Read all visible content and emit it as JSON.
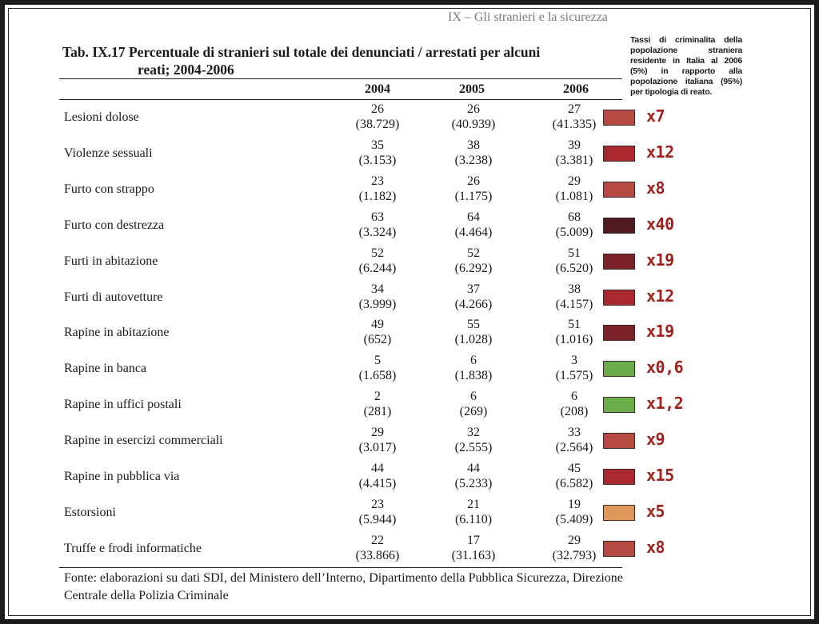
{
  "page_header": "IX – Gli stranieri e la sicurezza",
  "table": {
    "title_line1": "Tab. IX.17 Percentuale di stranieri sul totale dei denunciati / arrestati per alcuni",
    "title_line2": "reati; 2004-2006",
    "columns": [
      "2004",
      "2005",
      "2006"
    ],
    "rows": [
      {
        "label": "Lesioni dolose",
        "v2004": "26",
        "n2004": "(38.729)",
        "v2005": "26",
        "n2005": "(40.939)",
        "v2006": "27",
        "n2006": "(41.335)",
        "factor": "x7",
        "color": "#b54a42"
      },
      {
        "label": "Violenze sessuali",
        "v2004": "35",
        "n2004": "(3.153)",
        "v2005": "38",
        "n2005": "(3.238)",
        "v2006": "39",
        "n2006": "(3.381)",
        "factor": "x12",
        "color": "#a82a2c"
      },
      {
        "label": "Furto con strappo",
        "v2004": "23",
        "n2004": "(1.182)",
        "v2005": "26",
        "n2005": "(1.175)",
        "v2006": "29",
        "n2006": "(1.081)",
        "factor": "x8",
        "color": "#b54a42"
      },
      {
        "label": "Furto con destrezza",
        "v2004": "63",
        "n2004": "(3.324)",
        "v2005": "64",
        "n2005": "(4.464)",
        "v2006": "68",
        "n2006": "(5.009)",
        "factor": "x40",
        "color": "#4e1a20"
      },
      {
        "label": "Furti in abitazione",
        "v2004": "52",
        "n2004": "(6.244)",
        "v2005": "52",
        "n2005": "(6.292)",
        "v2006": "51",
        "n2006": "(6.520)",
        "factor": "x19",
        "color": "#7a2128"
      },
      {
        "label": "Furti di autovetture",
        "v2004": "34",
        "n2004": "(3.999)",
        "v2005": "37",
        "n2005": "(4.266)",
        "v2006": "38",
        "n2006": "(4.157)",
        "factor": "x12",
        "color": "#a82a2c"
      },
      {
        "label": "Rapine in abitazione",
        "v2004": "49",
        "n2004": "(652)",
        "v2005": "55",
        "n2005": "(1.028)",
        "v2006": "51",
        "n2006": "(1.016)",
        "factor": "x19",
        "color": "#7a2128"
      },
      {
        "label": "Rapine in banca",
        "v2004": "5",
        "n2004": "(1.658)",
        "v2005": "6",
        "n2005": "(1.838)",
        "v2006": "3",
        "n2006": "(1.575)",
        "factor": "x0,6",
        "color": "#6aab4a"
      },
      {
        "label": "Rapine in uffici postali",
        "v2004": "2",
        "n2004": "(281)",
        "v2005": "6",
        "n2005": "(269)",
        "v2006": "6",
        "n2006": "(208)",
        "factor": "x1,2",
        "color": "#6aab4a"
      },
      {
        "label": "Rapine in esercizi commerciali",
        "v2004": "29",
        "n2004": "(3.017)",
        "v2005": "32",
        "n2005": "(2.555)",
        "v2006": "33",
        "n2006": "(2.564)",
        "factor": "x9",
        "color": "#b54a42"
      },
      {
        "label": "Rapine in pubblica via",
        "v2004": "44",
        "n2004": "(4.415)",
        "v2005": "44",
        "n2005": "(5.233)",
        "v2006": "45",
        "n2006": "(6.582)",
        "factor": "x15",
        "color": "#a82a2c"
      },
      {
        "label": "Estorsioni",
        "v2004": "23",
        "n2004": "(5.944)",
        "v2005": "21",
        "n2005": "(6.110)",
        "v2006": "19",
        "n2006": "(5.409)",
        "factor": "x5",
        "color": "#e0985a"
      },
      {
        "label": "Truffe e frodi informatiche",
        "v2004": "22",
        "n2004": "(33.866)",
        "v2005": "17",
        "n2005": "(31.163)",
        "v2006": "29",
        "n2006": "(32.793)",
        "factor": "x8",
        "color": "#b54a42"
      }
    ],
    "source": "Fonte: elaborazioni su dati SDI, del Ministero dell’Interno, Dipartimento della Pubblica Sicurezza, Direzione Centrale della Polizia Criminale"
  },
  "side_note": "Tassi di criminalita della popolazione straniera residente in Italia al 2006 (5%) in rapporto alla popolazione italiana (95%) per tipologia di reato.",
  "colors": {
    "factor_text": "#a0201c"
  }
}
